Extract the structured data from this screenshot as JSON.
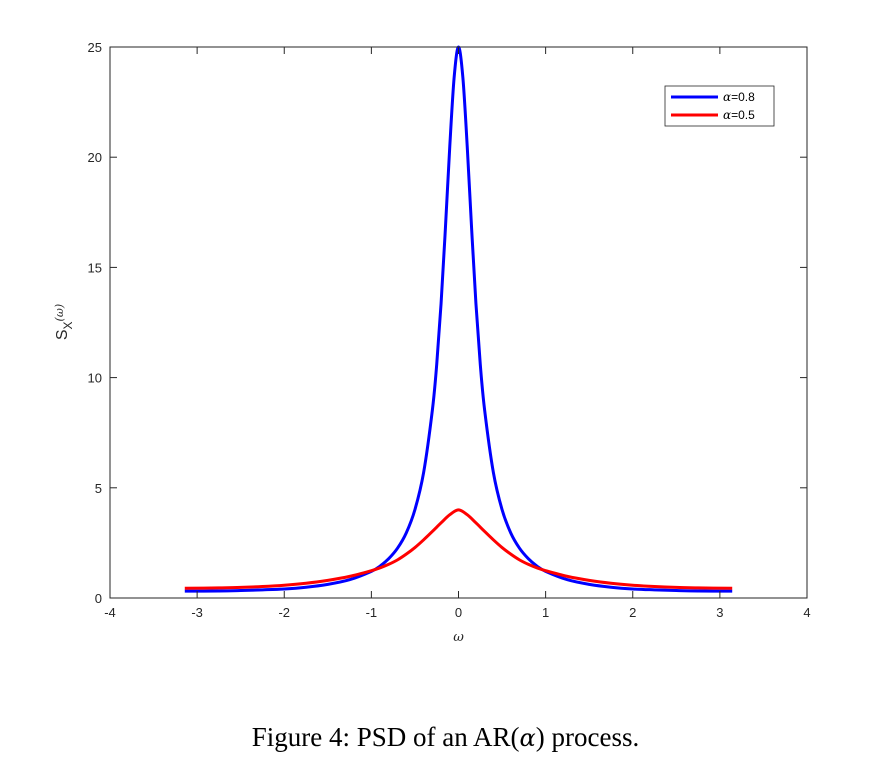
{
  "chart_data": {
    "type": "line",
    "title": "",
    "xlabel": "ω",
    "ylabel": {
      "main": "S",
      "subscript": "X",
      "argument": "(ω)"
    },
    "xlim": [
      -4,
      4
    ],
    "ylim": [
      0,
      25
    ],
    "xticks": [
      -4,
      -3,
      -2,
      -1,
      0,
      1,
      2,
      3,
      4
    ],
    "yticks": [
      0,
      5,
      10,
      15,
      20,
      25
    ],
    "grid": false,
    "legend_position": "top-right",
    "series": [
      {
        "name": "α=0.8",
        "name_parts": {
          "symbol": "α",
          "rest": "=0.8"
        },
        "color": "#0000ff",
        "x": [
          -3.1416,
          -2.75,
          -2.5,
          -2.25,
          -2.0,
          -1.75,
          -1.5,
          -1.25,
          -1.0,
          -0.9,
          -0.8,
          -0.7,
          -0.6,
          -0.5,
          -0.4,
          -0.3,
          -0.25,
          -0.2,
          -0.15,
          -0.1,
          -0.05,
          0.0,
          0.05,
          0.1,
          0.15,
          0.2,
          0.25,
          0.3,
          0.4,
          0.5,
          0.6,
          0.7,
          0.8,
          0.9,
          1.0,
          1.25,
          1.5,
          1.75,
          2.0,
          2.25,
          2.5,
          2.75,
          3.1416
        ],
        "y": [
          0.31,
          0.32,
          0.34,
          0.37,
          0.41,
          0.49,
          0.62,
          0.83,
          1.21,
          1.45,
          1.79,
          2.26,
          2.95,
          4.01,
          5.7,
          8.52,
          10.6,
          13.36,
          16.8,
          20.5,
          23.62,
          25.0,
          23.62,
          20.5,
          16.8,
          13.36,
          10.6,
          8.52,
          5.7,
          4.01,
          2.95,
          2.26,
          1.79,
          1.45,
          1.21,
          0.83,
          0.62,
          0.49,
          0.41,
          0.37,
          0.34,
          0.32,
          0.31
        ]
      },
      {
        "name": "α=0.5",
        "name_parts": {
          "symbol": "α",
          "rest": "=0.5"
        },
        "color": "#ff0000",
        "x": [
          -3.1416,
          -2.75,
          -2.5,
          -2.25,
          -2.0,
          -1.75,
          -1.5,
          -1.25,
          -1.0,
          -0.9,
          -0.8,
          -0.7,
          -0.6,
          -0.5,
          -0.4,
          -0.3,
          -0.2,
          -0.1,
          0.0,
          0.1,
          0.2,
          0.3,
          0.4,
          0.5,
          0.6,
          0.7,
          0.8,
          0.9,
          1.0,
          1.25,
          1.5,
          1.75,
          2.0,
          2.25,
          2.5,
          2.75,
          3.1416
        ],
        "y": [
          0.44,
          0.46,
          0.48,
          0.52,
          0.58,
          0.67,
          0.8,
          0.98,
          1.24,
          1.37,
          1.53,
          1.73,
          1.99,
          2.29,
          2.64,
          3.02,
          3.41,
          3.78,
          4.0,
          3.78,
          3.41,
          3.02,
          2.64,
          2.29,
          1.99,
          1.73,
          1.53,
          1.37,
          1.24,
          0.98,
          0.8,
          0.67,
          0.58,
          0.52,
          0.48,
          0.46,
          0.44
        ]
      }
    ]
  },
  "caption": {
    "prefix": "Figure 4: PSD of an AR(",
    "symbol": "α",
    "suffix": ") process."
  }
}
